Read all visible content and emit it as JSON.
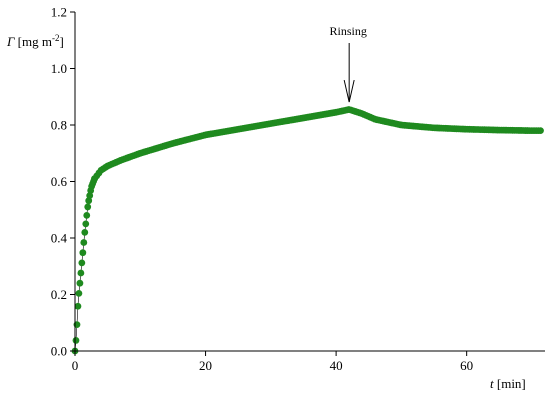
{
  "chart_data": {
    "type": "scatter",
    "xlabel_var": "t",
    "xlabel_unit": " [min]",
    "ylabel_var": "Γ",
    "ylabel_unit_pre": " [mg m",
    "ylabel_unit_exp": "-2",
    "ylabel_unit_post": "]",
    "xlim": [
      0,
      72
    ],
    "ylim": [
      0,
      1.2
    ],
    "x_ticks": [
      0,
      20,
      40,
      60
    ],
    "x_tick_labels": [
      "0",
      "20",
      "40",
      "60"
    ],
    "y_ticks": [
      0,
      0.2,
      0.4,
      0.6,
      0.8,
      1.0,
      1.2
    ],
    "y_tick_labels": [
      "0.0",
      "0.2",
      "0.4",
      "0.6",
      "0.8",
      "1.0",
      "1.2"
    ],
    "marker_color": "#1f8a1f",
    "grid": false,
    "annotation": {
      "text": "Rinsing",
      "x": 42,
      "y": 0.86
    },
    "curve": [
      [
        0,
        0.0
      ],
      [
        0.2,
        0.05
      ],
      [
        0.5,
        0.18
      ],
      [
        1.0,
        0.3
      ],
      [
        1.5,
        0.42
      ],
      [
        2.0,
        0.52
      ],
      [
        2.5,
        0.58
      ],
      [
        3.0,
        0.61
      ],
      [
        4.0,
        0.64
      ],
      [
        5.0,
        0.655
      ],
      [
        7.0,
        0.675
      ],
      [
        10.0,
        0.7
      ],
      [
        15.0,
        0.735
      ],
      [
        20.0,
        0.765
      ],
      [
        25.0,
        0.785
      ],
      [
        30.0,
        0.805
      ],
      [
        35.0,
        0.825
      ],
      [
        40.0,
        0.845
      ],
      [
        42.0,
        0.855
      ],
      [
        44.0,
        0.84
      ],
      [
        46.0,
        0.82
      ],
      [
        48.0,
        0.81
      ],
      [
        50.0,
        0.8
      ],
      [
        55.0,
        0.79
      ],
      [
        60.0,
        0.785
      ],
      [
        65.0,
        0.782
      ],
      [
        70.0,
        0.78
      ],
      [
        71.5,
        0.78
      ]
    ]
  }
}
